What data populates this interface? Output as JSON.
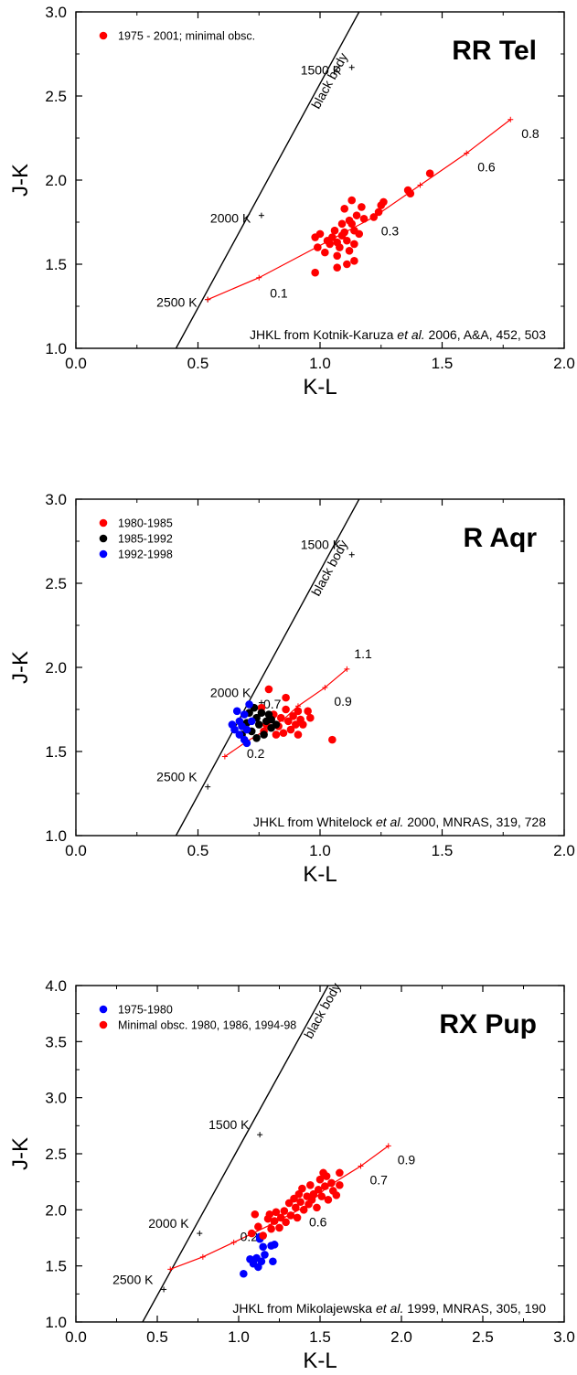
{
  "chart_data": [
    {
      "type": "scatter",
      "title": "RR Tel",
      "xlabel": "K-L",
      "ylabel": "J-K",
      "xlim": [
        0.0,
        2.0
      ],
      "ylim": [
        1.0,
        3.0
      ],
      "xticks": [
        "0.0",
        "0.5",
        "1.0",
        "1.5",
        "2.0"
      ],
      "yticks": [
        "1.0",
        "1.5",
        "2.0",
        "2.5",
        "3.0"
      ],
      "legend_position": "top-left",
      "source_note": {
        "pre": "JHKL from Kotnik-Karuza ",
        "em": "et al.",
        "post": " 2006, A&A, 452, 503"
      },
      "blackbody": {
        "label": "black body",
        "line": [
          [
            0.41,
            1.0
          ],
          [
            1.16,
            3.0
          ]
        ],
        "marks": [
          {
            "x": 0.54,
            "y": 1.29,
            "label": "2500 K"
          },
          {
            "x": 0.76,
            "y": 1.79,
            "label": "2000 K"
          },
          {
            "x": 1.13,
            "y": 2.67,
            "label": "1500 K"
          }
        ]
      },
      "model": {
        "points": [
          [
            0.54,
            1.29
          ],
          [
            0.75,
            1.42
          ],
          [
            1.22,
            1.78
          ],
          [
            1.41,
            1.97
          ],
          [
            1.6,
            2.16
          ],
          [
            1.78,
            2.36
          ]
        ],
        "labels": [
          {
            "i": 1,
            "text": "0.1"
          },
          {
            "i": 2,
            "text": "0.3"
          },
          {
            "i": 4,
            "text": "0.6"
          },
          {
            "i": 5,
            "text": "0.8"
          }
        ]
      },
      "series": [
        {
          "name": "1975 - 2001; minimal obsc.",
          "color": "#ff0000",
          "points": [
            [
              0.98,
              1.45
            ],
            [
              0.99,
              1.6
            ],
            [
              0.98,
              1.66
            ],
            [
              1.0,
              1.68
            ],
            [
              1.02,
              1.57
            ],
            [
              1.03,
              1.64
            ],
            [
              1.04,
              1.62
            ],
            [
              1.05,
              1.66
            ],
            [
              1.06,
              1.7
            ],
            [
              1.07,
              1.63
            ],
            [
              1.07,
              1.55
            ],
            [
              1.07,
              1.48
            ],
            [
              1.08,
              1.6
            ],
            [
              1.09,
              1.67
            ],
            [
              1.09,
              1.74
            ],
            [
              1.1,
              1.69
            ],
            [
              1.1,
              1.83
            ],
            [
              1.11,
              1.64
            ],
            [
              1.11,
              1.5
            ],
            [
              1.12,
              1.76
            ],
            [
              1.12,
              1.58
            ],
            [
              1.13,
              1.88
            ],
            [
              1.13,
              1.74
            ],
            [
              1.14,
              1.62
            ],
            [
              1.14,
              1.7
            ],
            [
              1.15,
              1.79
            ],
            [
              1.14,
              1.52
            ],
            [
              1.16,
              1.68
            ],
            [
              1.17,
              1.84
            ],
            [
              1.18,
              1.77
            ],
            [
              1.22,
              1.78
            ],
            [
              1.24,
              1.81
            ],
            [
              1.25,
              1.85
            ],
            [
              1.26,
              1.87
            ],
            [
              1.36,
              1.94
            ],
            [
              1.37,
              1.92
            ],
            [
              1.45,
              2.04
            ]
          ]
        }
      ]
    },
    {
      "type": "scatter",
      "title": "R Aqr",
      "xlabel": "K-L",
      "ylabel": "J-K",
      "xlim": [
        0.0,
        2.0
      ],
      "ylim": [
        1.0,
        3.0
      ],
      "xticks": [
        "0.0",
        "0.5",
        "1.0",
        "1.5",
        "2.0"
      ],
      "yticks": [
        "1.0",
        "1.5",
        "2.0",
        "2.5",
        "3.0"
      ],
      "legend_position": "top-left",
      "source_note": {
        "pre": "JHKL from Whitelock ",
        "em": "et al.",
        "post": " 2000, MNRAS, 319, 728"
      },
      "blackbody": {
        "label": "black body",
        "line": [
          [
            0.41,
            1.0
          ],
          [
            1.16,
            3.0
          ]
        ],
        "marks": [
          {
            "x": 0.54,
            "y": 1.29,
            "label": "2500 K"
          },
          {
            "x": 0.76,
            "y": 1.79,
            "label": "2000 K"
          },
          {
            "x": 1.13,
            "y": 2.67,
            "label": "1500 K"
          }
        ]
      },
      "model": {
        "points": [
          [
            0.61,
            1.47
          ],
          [
            0.7,
            1.56
          ],
          [
            0.85,
            1.69
          ],
          [
            0.91,
            1.77
          ],
          [
            1.02,
            1.88
          ],
          [
            1.11,
            1.99
          ]
        ],
        "labels": [
          {
            "i": 1,
            "text": "0.2"
          },
          {
            "i": 2,
            "text": "0.7"
          },
          {
            "i": 4,
            "text": "0.9"
          },
          {
            "i": 5,
            "text": "1.1"
          }
        ]
      },
      "series": [
        {
          "name": "1980-1985",
          "color": "#ff0000",
          "points": [
            [
              0.76,
              1.76
            ],
            [
              0.77,
              1.62
            ],
            [
              0.78,
              1.66
            ],
            [
              0.79,
              1.87
            ],
            [
              0.8,
              1.69
            ],
            [
              0.81,
              1.72
            ],
            [
              0.82,
              1.6
            ],
            [
              0.83,
              1.65
            ],
            [
              0.84,
              1.7
            ],
            [
              0.85,
              1.61
            ],
            [
              0.86,
              1.75
            ],
            [
              0.86,
              1.82
            ],
            [
              0.87,
              1.68
            ],
            [
              0.88,
              1.63
            ],
            [
              0.89,
              1.71
            ],
            [
              0.9,
              1.66
            ],
            [
              0.91,
              1.74
            ],
            [
              0.91,
              1.6
            ],
            [
              0.92,
              1.69
            ],
            [
              0.93,
              1.66
            ],
            [
              0.95,
              1.74
            ],
            [
              0.96,
              1.7
            ],
            [
              1.05,
              1.57
            ]
          ]
        },
        {
          "name": "1985-1992",
          "color": "#000000",
          "points": [
            [
              0.68,
              1.6
            ],
            [
              0.7,
              1.67
            ],
            [
              0.71,
              1.73
            ],
            [
              0.72,
              1.62
            ],
            [
              0.73,
              1.76
            ],
            [
              0.74,
              1.7
            ],
            [
              0.74,
              1.58
            ],
            [
              0.75,
              1.66
            ],
            [
              0.76,
              1.73
            ],
            [
              0.77,
              1.6
            ],
            [
              0.78,
              1.68
            ],
            [
              0.79,
              1.72
            ],
            [
              0.8,
              1.64
            ],
            [
              0.8,
              1.69
            ],
            [
              0.82,
              1.66
            ]
          ]
        },
        {
          "name": "1992-1998",
          "color": "#0000ff",
          "points": [
            [
              0.64,
              1.66
            ],
            [
              0.65,
              1.63
            ],
            [
              0.66,
              1.74
            ],
            [
              0.67,
              1.68
            ],
            [
              0.67,
              1.6
            ],
            [
              0.68,
              1.65
            ],
            [
              0.69,
              1.72
            ],
            [
              0.69,
              1.57
            ],
            [
              0.7,
              1.55
            ],
            [
              0.71,
              1.78
            ],
            [
              0.72,
              1.68
            ],
            [
              0.7,
              1.63
            ]
          ]
        }
      ]
    },
    {
      "type": "scatter",
      "title": "RX Pup",
      "xlabel": "K-L",
      "ylabel": "J-K",
      "xlim": [
        0.0,
        3.0
      ],
      "ylim": [
        1.0,
        4.0
      ],
      "xticks": [
        "0.0",
        "0.5",
        "1.0",
        "1.5",
        "2.0",
        "2.5",
        "3.0"
      ],
      "yticks": [
        "1.0",
        "1.5",
        "2.0",
        "2.5",
        "3.0",
        "3.5",
        "4.0"
      ],
      "legend_position": "top-left",
      "source_note": {
        "pre": "JHKL from Mikolajewska ",
        "em": "et al.",
        "post": " 1999, MNRAS, 305, 190"
      },
      "blackbody": {
        "label": "black body",
        "line": [
          [
            0.41,
            1.0
          ],
          [
            1.55,
            4.0
          ]
        ],
        "marks": [
          {
            "x": 0.54,
            "y": 1.29,
            "label": "2500 K"
          },
          {
            "x": 0.76,
            "y": 1.79,
            "label": "2000 K"
          },
          {
            "x": 1.13,
            "y": 2.67,
            "label": "1500 K"
          }
        ]
      },
      "model": {
        "points": [
          [
            0.58,
            1.47
          ],
          [
            0.78,
            1.58
          ],
          [
            0.97,
            1.71
          ],
          [
            1.2,
            1.87
          ],
          [
            1.41,
            2.03
          ],
          [
            1.55,
            2.21
          ],
          [
            1.75,
            2.39
          ],
          [
            1.92,
            2.57
          ]
        ],
        "labels": [
          {
            "i": 3,
            "text": "0.2"
          },
          {
            "i": 4,
            "text": "0.6"
          },
          {
            "i": 6,
            "text": "0.7"
          },
          {
            "i": 7,
            "text": "0.9"
          }
        ]
      },
      "series": [
        {
          "name": "1975-1980",
          "color": "#0000ff",
          "points": [
            [
              1.03,
              1.43
            ],
            [
              1.07,
              1.56
            ],
            [
              1.09,
              1.52
            ],
            [
              1.11,
              1.57
            ],
            [
              1.12,
              1.49
            ],
            [
              1.13,
              1.76
            ],
            [
              1.14,
              1.54
            ],
            [
              1.15,
              1.67
            ],
            [
              1.16,
              1.6
            ],
            [
              1.2,
              1.68
            ],
            [
              1.21,
              1.54
            ],
            [
              1.22,
              1.69
            ],
            [
              1.13,
              1.74
            ]
          ]
        },
        {
          "name": "Minimal obsc. 1980, 1986, 1994-98",
          "color": "#ff0000",
          "points": [
            [
              1.08,
              1.79
            ],
            [
              1.1,
              1.96
            ],
            [
              1.12,
              1.85
            ],
            [
              1.15,
              1.77
            ],
            [
              1.18,
              1.92
            ],
            [
              1.19,
              1.96
            ],
            [
              1.2,
              1.83
            ],
            [
              1.22,
              1.9
            ],
            [
              1.23,
              1.98
            ],
            [
              1.25,
              1.84
            ],
            [
              1.26,
              1.93
            ],
            [
              1.28,
              1.99
            ],
            [
              1.29,
              1.89
            ],
            [
              1.31,
              2.06
            ],
            [
              1.32,
              1.95
            ],
            [
              1.34,
              2.1
            ],
            [
              1.35,
              2.02
            ],
            [
              1.36,
              1.93
            ],
            [
              1.37,
              2.14
            ],
            [
              1.38,
              2.07
            ],
            [
              1.39,
              2.19
            ],
            [
              1.4,
              2.0
            ],
            [
              1.42,
              2.12
            ],
            [
              1.43,
              2.05
            ],
            [
              1.44,
              2.22
            ],
            [
              1.45,
              2.09
            ],
            [
              1.46,
              2.14
            ],
            [
              1.48,
              2.02
            ],
            [
              1.49,
              2.18
            ],
            [
              1.5,
              2.27
            ],
            [
              1.51,
              2.12
            ],
            [
              1.52,
              2.33
            ],
            [
              1.53,
              2.21
            ],
            [
              1.54,
              2.3
            ],
            [
              1.55,
              2.09
            ],
            [
              1.57,
              2.24
            ],
            [
              1.58,
              2.17
            ],
            [
              1.6,
              2.13
            ],
            [
              1.62,
              2.33
            ],
            [
              1.62,
              2.22
            ]
          ]
        }
      ]
    }
  ]
}
